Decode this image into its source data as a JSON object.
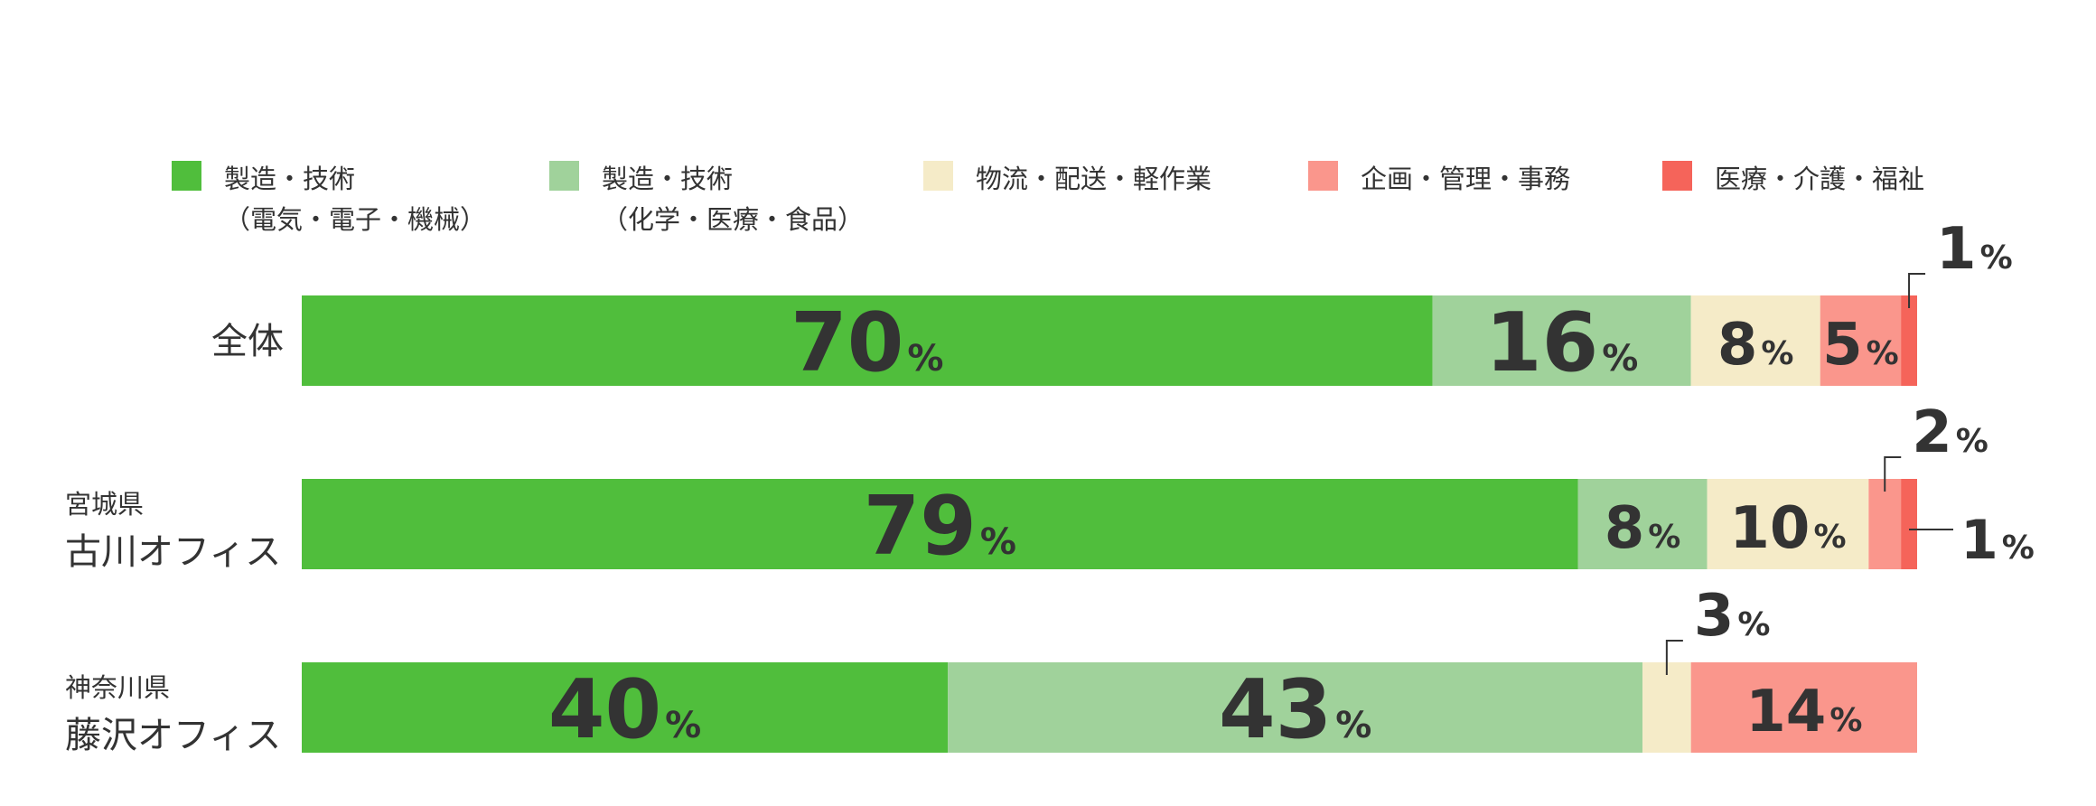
{
  "legend": [
    {
      "label": "製造・技術\n（電気・電子・機械）",
      "color": "#50be3c"
    },
    {
      "label": "製造・技術\n（化学・医療・食品）",
      "color": "#a0d29b"
    },
    {
      "label": "物流・配送・軽作業",
      "color": "#f5ebc8"
    },
    {
      "label": "企画・管理・事務",
      "color": "#fa968c"
    },
    {
      "label": "医療・介護・福祉",
      "color": "#f5645a"
    }
  ],
  "chart_data": {
    "type": "bar",
    "orientation": "horizontal",
    "stacked": true,
    "normalized": true,
    "unit": "%",
    "grid": false,
    "legend_position": "top",
    "categories": [
      {
        "sub": "",
        "main": "全体"
      },
      {
        "sub": "宮城県",
        "main": "古川オフィス"
      },
      {
        "sub": "神奈川県",
        "main": "藤沢オフィス"
      }
    ],
    "series": [
      {
        "name": "製造・技術（電気・電子・機械）",
        "color": "#50be3c",
        "values": [
          70,
          79,
          40
        ]
      },
      {
        "name": "製造・技術（化学・医療・食品）",
        "color": "#a0d29b",
        "values": [
          16,
          8,
          43
        ]
      },
      {
        "name": "物流・配送・軽作業",
        "color": "#f5ebc8",
        "values": [
          8,
          10,
          3
        ]
      },
      {
        "name": "企画・管理・事務",
        "color": "#fa968c",
        "values": [
          5,
          2,
          14
        ]
      },
      {
        "name": "医療・介護・福祉",
        "color": "#f5645a",
        "values": [
          1,
          1,
          0
        ]
      }
    ]
  }
}
